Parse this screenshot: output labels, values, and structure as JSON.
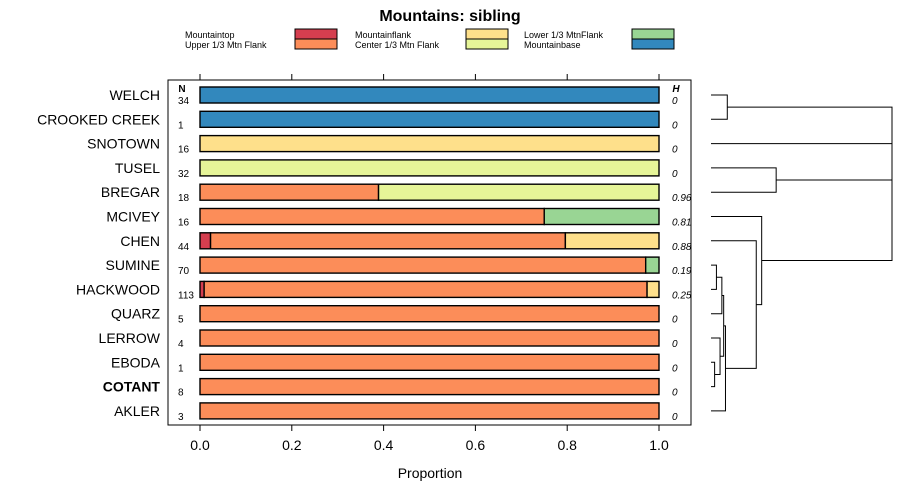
{
  "chart_data": {
    "type": "bar",
    "stacked": true,
    "orientation": "horizontal",
    "title": "Mountains: sibling",
    "xlabel": "Proportion",
    "xlim": [
      0,
      1
    ],
    "xticks": [
      0,
      0.2,
      0.4,
      0.6,
      0.8,
      1.0
    ],
    "xtick_labels": [
      "0.0",
      "0.2",
      "0.4",
      "0.6",
      "0.8",
      "1.0"
    ],
    "n_header": "N",
    "h_header": "H",
    "legend": [
      {
        "name": "Mountaintop",
        "color": "#d53e4f"
      },
      {
        "name": "Upper 1/3 Mtn Flank",
        "color": "#fc8d59"
      },
      {
        "name": "Mountainflank",
        "color": "#fee08b"
      },
      {
        "name": "Center 1/3 Mtn Flank",
        "color": "#e6f598"
      },
      {
        "name": "Lower 1/3 MtnFlank",
        "color": "#99d594"
      },
      {
        "name": "Mountainbase",
        "color": "#3288bd"
      }
    ],
    "categories": [
      "WELCH",
      "CROOKED CREEK",
      "SNOTOWN",
      "TUSEL",
      "BREGAR",
      "MCIVEY",
      "CHEN",
      "SUMINE",
      "HACKWOOD",
      "QUARZ",
      "LERROW",
      "EBODA",
      "COTANT",
      "AKLER"
    ],
    "bold_categories": [
      "COTANT"
    ],
    "n": [
      "34",
      "1",
      "16",
      "32",
      "18",
      "16",
      "44",
      "70",
      "113",
      "5",
      "4",
      "1",
      "8",
      "3"
    ],
    "h": [
      "0",
      "0",
      "0",
      "0",
      "0.96",
      "0.81",
      "0.88",
      "0.19",
      "0.25",
      "0",
      "0",
      "0",
      "0",
      "0"
    ],
    "series": [
      {
        "name": "Mountaintop",
        "values": [
          0,
          0,
          0,
          0,
          0,
          0,
          0.023,
          0,
          0.009,
          0,
          0,
          0,
          0,
          0
        ]
      },
      {
        "name": "Upper 1/3 Mtn Flank",
        "values": [
          0,
          0,
          0,
          0,
          0.389,
          0.75,
          0.773,
          0.971,
          0.965,
          1,
          1,
          1,
          1,
          1
        ]
      },
      {
        "name": "Mountainflank",
        "values": [
          0,
          0,
          1,
          0,
          0,
          0,
          0.204,
          0,
          0.026,
          0,
          0,
          0,
          0,
          0
        ]
      },
      {
        "name": "Center 1/3 Mtn Flank",
        "values": [
          0,
          0,
          0,
          1,
          0.611,
          0,
          0,
          0,
          0,
          0,
          0,
          0,
          0,
          0
        ]
      },
      {
        "name": "Lower 1/3 MtnFlank",
        "values": [
          0,
          0,
          0,
          0,
          0,
          0.25,
          0,
          0.029,
          0,
          0,
          0,
          0,
          0,
          0
        ]
      },
      {
        "name": "Mountainbase",
        "values": [
          1,
          1,
          0,
          0,
          0,
          0,
          0,
          0,
          0,
          0,
          0,
          0,
          0,
          0
        ]
      }
    ],
    "dendrogram": {
      "type": "hierarchical-clustering",
      "leaf_order": [
        "WELCH",
        "CROOKED CREEK",
        "SNOTOWN",
        "TUSEL",
        "BREGAR",
        "MCIVEY",
        "CHEN",
        "SUMINE",
        "HACKWOOD",
        "QUARZ",
        "LERROW",
        "EBODA",
        "COTANT",
        "AKLER"
      ],
      "merges": [
        {
          "a": "WELCH",
          "b": "CROOKED CREEK",
          "height": 0.09
        },
        {
          "a": "TUSEL",
          "b": "BREGAR",
          "height": 0.36
        },
        {
          "a": "EBODA",
          "b": "COTANT",
          "height": 0.02
        },
        {
          "a": "LERROW",
          "b": [
            "EBODA",
            "COTANT"
          ],
          "height": 0.05
        },
        {
          "a": "SUMINE",
          "b": "HACKWOOD",
          "height": 0.03
        },
        {
          "a": [
            "SUMINE",
            "HACKWOOD"
          ],
          "b": "QUARZ",
          "height": 0.06
        },
        {
          "a": [
            "SUMINE",
            "HACKWOOD",
            "QUARZ"
          ],
          "b": [
            "LERROW",
            "EBODA",
            "COTANT"
          ],
          "height": 0.07
        },
        {
          "a": [
            "SUMINE",
            "...",
            "COTANT"
          ],
          "b": "AKLER",
          "height": 0.08
        },
        {
          "a": "CHEN",
          "b": [
            "SUMINE",
            "...",
            "AKLER"
          ],
          "height": 0.25
        },
        {
          "a": "MCIVEY",
          "b": [
            "CHEN",
            "...",
            "AKLER"
          ],
          "height": 0.28
        },
        {
          "a": "SNOTOWN",
          "b": [
            "TUSEL",
            "BREGAR"
          ],
          "height": 1.0
        },
        {
          "a": [
            "SNOTOWN",
            "TUSEL",
            "BREGAR"
          ],
          "b": [
            "MCIVEY",
            "...",
            "AKLER"
          ],
          "height": 1.0
        },
        {
          "a": [
            "WELCH",
            "CROOKED CREEK"
          ],
          "b": [
            "SNOTOWN",
            "...",
            "AKLER"
          ],
          "height": 1.0
        }
      ]
    }
  }
}
